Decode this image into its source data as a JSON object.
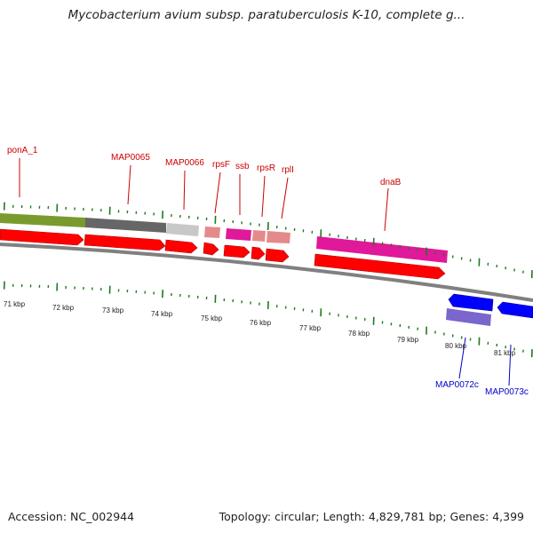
{
  "title": "Mycobacterium avium subsp. paratuberculosis K-10, complete g...",
  "footer": {
    "accession": "Accession: NC_002944",
    "summary": "Topology: circular; Length: 4,829,781 bp; Genes: 4,399"
  },
  "colors": {
    "label_forward": "#cc0000",
    "label_reverse": "#0000cc",
    "backbone": "#808080",
    "tick": "#1f7a1f",
    "kbp_text": "#222222"
  },
  "kbp_labels": [
    "71 kbp",
    "72 kbp",
    "73 kbp",
    "74 kbp",
    "75 kbp",
    "76 kbp",
    "77 kbp",
    "78 kbp",
    "79 kbp",
    "80 kbp",
    "81 kbp"
  ],
  "gene_labels": [
    {
      "id": "ponA_1",
      "text": "ponA_1",
      "strand": "forward"
    },
    {
      "id": "MAP0065",
      "text": "MAP0065",
      "strand": "forward"
    },
    {
      "id": "MAP0066",
      "text": "MAP0066",
      "strand": "forward"
    },
    {
      "id": "rpsF",
      "text": "rpsF",
      "strand": "forward"
    },
    {
      "id": "ssb",
      "text": "ssb",
      "strand": "forward"
    },
    {
      "id": "rpsR",
      "text": "rpsR",
      "strand": "forward"
    },
    {
      "id": "rplI",
      "text": "rplI",
      "strand": "forward"
    },
    {
      "id": "dnaB",
      "text": "dnaB",
      "strand": "forward"
    },
    {
      "id": "MAP0072c",
      "text": "MAP0072c",
      "strand": "reverse"
    },
    {
      "id": "MAP0073c",
      "text": "MAP0073c",
      "strand": "reverse"
    }
  ]
}
